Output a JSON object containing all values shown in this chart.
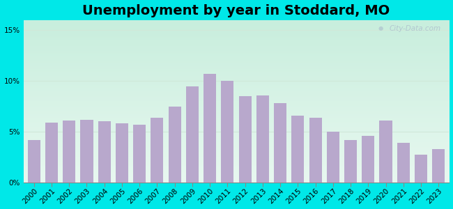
{
  "title": "Unemployment by year in Stoddard, MO",
  "years": [
    2000,
    2001,
    2002,
    2003,
    2004,
    2005,
    2006,
    2007,
    2008,
    2009,
    2010,
    2011,
    2012,
    2013,
    2014,
    2015,
    2016,
    2017,
    2018,
    2019,
    2020,
    2021,
    2022,
    2023
  ],
  "values": [
    4.2,
    5.9,
    6.1,
    6.2,
    6.0,
    5.8,
    5.7,
    6.4,
    7.5,
    9.5,
    10.7,
    10.0,
    8.5,
    8.6,
    7.8,
    6.6,
    6.4,
    5.0,
    4.2,
    4.6,
    6.1,
    3.9,
    2.7,
    3.3
  ],
  "bar_color": "#b8a8cc",
  "background_outer": "#00e8e8",
  "background_plot_top": "#c8eedd",
  "background_plot_bottom": "#e8f8f0",
  "title_fontsize": 14,
  "tick_fontsize": 7.5,
  "ytick_labels": [
    "0%",
    "5%",
    "10%",
    "15%"
  ],
  "ytick_values": [
    0,
    5,
    10,
    15
  ],
  "ylim": [
    0,
    16
  ],
  "watermark_text": "City-Data.com",
  "grid_color": "#d0e8d8"
}
